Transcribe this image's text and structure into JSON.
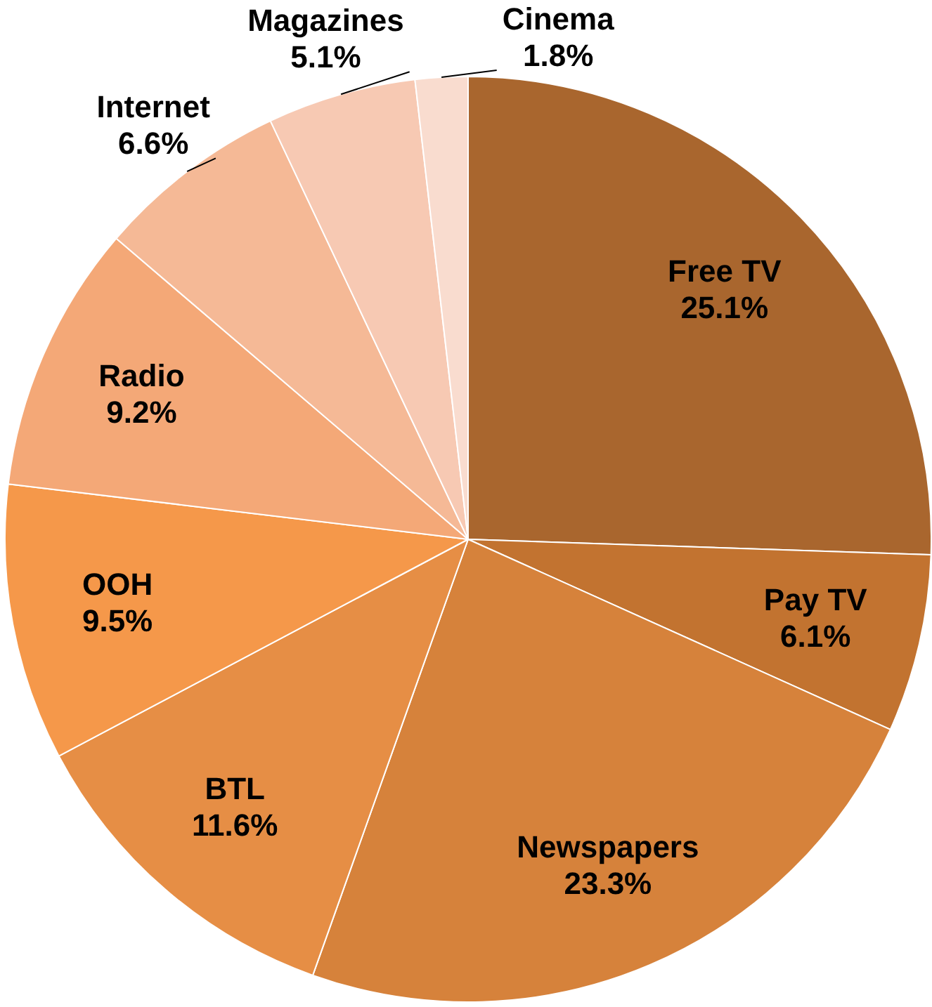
{
  "chart_data": {
    "type": "pie",
    "categories": [
      "Free TV",
      "Pay TV",
      "Newspapers",
      "BTL",
      "OOH",
      "Radio",
      "Internet",
      "Magazines",
      "Cinema"
    ],
    "values": [
      25.1,
      6.1,
      23.3,
      11.6,
      9.5,
      9.2,
      6.6,
      5.1,
      1.8
    ],
    "value_labels": [
      "25.1%",
      "6.1%",
      "23.3%",
      "11.6%",
      "9.5%",
      "9.2%",
      "6.6%",
      "5.1%",
      "1.8%"
    ],
    "colors": [
      "#a9662e",
      "#c27330",
      "#d6823b",
      "#e68e45",
      "#f5984a",
      "#f4a877",
      "#f5b996",
      "#f7c9b3",
      "#f9dccf"
    ]
  }
}
